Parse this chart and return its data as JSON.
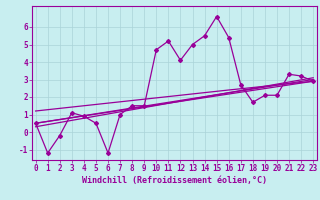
{
  "xlabel": "Windchill (Refroidissement éolien,°C)",
  "bg_color": "#c8eef0",
  "grid_color": "#aad4d8",
  "line_color": "#990099",
  "x_ticks": [
    0,
    1,
    2,
    3,
    4,
    5,
    6,
    7,
    8,
    9,
    10,
    11,
    12,
    13,
    14,
    15,
    16,
    17,
    18,
    19,
    20,
    21,
    22,
    23
  ],
  "y_ticks": [
    -1,
    0,
    1,
    2,
    3,
    4,
    5,
    6
  ],
  "xlim": [
    -0.3,
    23.3
  ],
  "ylim": [
    -1.6,
    7.2
  ],
  "line1_x": [
    0,
    1,
    2,
    3,
    4,
    5,
    6,
    7,
    8,
    9,
    10,
    11,
    12,
    13,
    14,
    15,
    16,
    17,
    18,
    19,
    20,
    21,
    22,
    23
  ],
  "line1_y": [
    0.5,
    -1.2,
    -0.2,
    1.1,
    0.9,
    0.5,
    -1.2,
    1.0,
    1.5,
    1.5,
    4.7,
    5.2,
    4.1,
    5.0,
    5.5,
    6.6,
    5.4,
    2.7,
    1.7,
    2.1,
    2.1,
    3.3,
    3.2,
    2.9
  ],
  "line2_x": [
    0,
    23
  ],
  "line2_y": [
    0.5,
    3.0
  ],
  "line3_x": [
    0,
    23
  ],
  "line3_y": [
    0.5,
    2.9
  ],
  "line4_x": [
    0,
    23
  ],
  "line4_y": [
    0.3,
    3.1
  ],
  "line5_x": [
    0,
    16,
    23
  ],
  "line5_y": [
    1.2,
    2.4,
    2.9
  ],
  "tick_fontsize": 5.5,
  "label_fontsize": 6.0
}
